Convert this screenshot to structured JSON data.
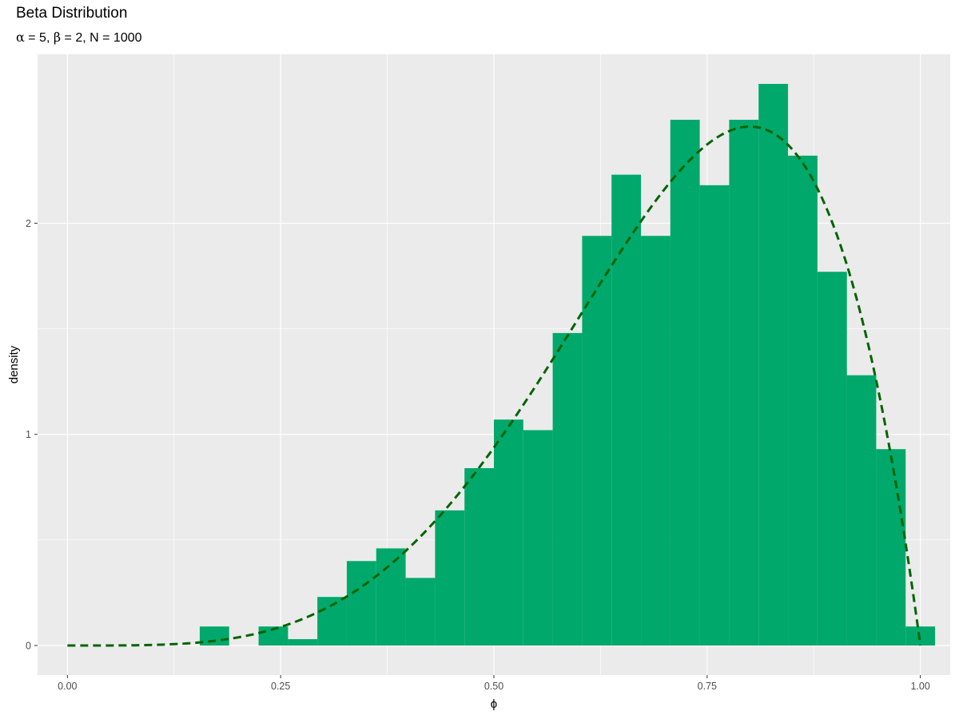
{
  "title": "Beta Distribution",
  "subtitle": {
    "alpha_symbol": "α",
    "alpha_value": "5",
    "beta_symbol": "β",
    "beta_value": "2",
    "n_symbol": "N",
    "n_value": "1000"
  },
  "colors": {
    "panel_background": "#EBEBEB",
    "grid_major": "#FFFFFF",
    "bar_fill": "#00A86B",
    "density_line": "#006400"
  },
  "chart_data": {
    "type": "bar",
    "subtype": "histogram_with_density_curve",
    "xlabel": "ϕ",
    "ylabel": "density",
    "xlim": [
      -0.035,
      1.035
    ],
    "ylim": [
      -0.14,
      2.8
    ],
    "x_ticks": [
      0.0,
      0.25,
      0.5,
      0.75,
      1.0
    ],
    "x_tick_labels": [
      "0.00",
      "0.25",
      "0.50",
      "0.75",
      "1.00"
    ],
    "y_ticks": [
      0,
      1,
      2
    ],
    "y_tick_labels": [
      "0",
      "1",
      "2"
    ],
    "grid": true,
    "bin_width": 0.0345,
    "bin_centers": [
      0.1724,
      0.2069,
      0.2414,
      0.2759,
      0.3103,
      0.3448,
      0.3793,
      0.4138,
      0.4483,
      0.4828,
      0.5172,
      0.5517,
      0.5862,
      0.6207,
      0.6552,
      0.6897,
      0.7241,
      0.7586,
      0.7931,
      0.8276,
      0.8621,
      0.8966,
      0.931,
      0.9655,
      1.0
    ],
    "values": [
      0.09,
      0.0,
      0.09,
      0.03,
      0.23,
      0.4,
      0.46,
      0.32,
      0.64,
      0.84,
      1.07,
      1.02,
      1.48,
      1.94,
      2.23,
      1.94,
      2.49,
      2.18,
      2.49,
      2.66,
      2.32,
      1.77,
      1.28,
      0.93,
      0.09
    ],
    "series": [
      {
        "type": "line",
        "style": "dashed",
        "function": "dbeta(x, 5, 2)",
        "x_range": [
          0,
          1
        ]
      }
    ]
  }
}
